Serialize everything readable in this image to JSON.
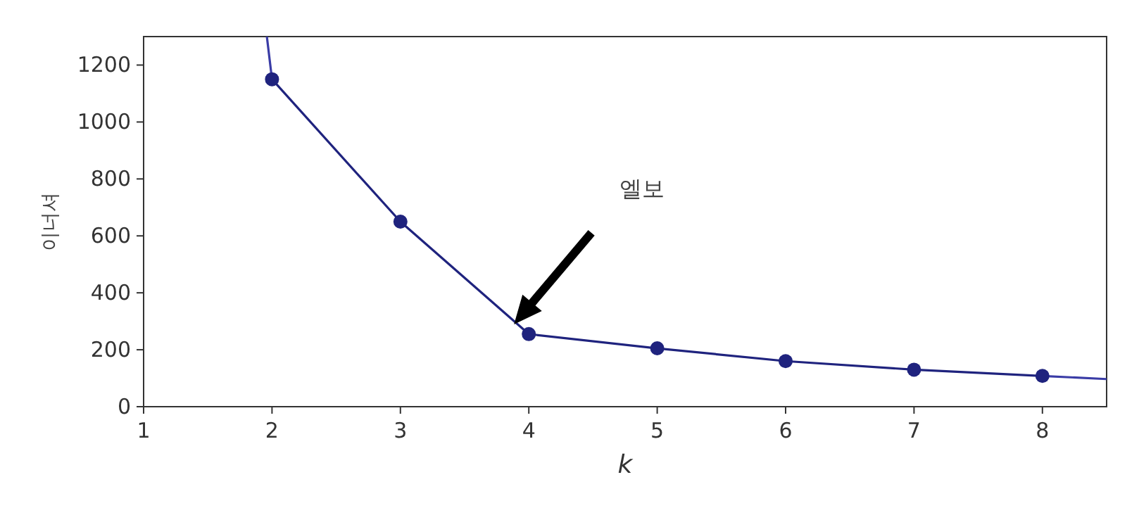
{
  "chart_data": {
    "type": "line",
    "xlabel": "*k*",
    "ylabel": "이너셔",
    "x": [
      2,
      3,
      4,
      5,
      6,
      7,
      8
    ],
    "series": [
      {
        "color": "#1f237e",
        "marker": "circle",
        "values": [
          1150,
          650,
          255,
          205,
          160,
          130,
          108
        ]
      },
      {
        "color": "#3a3ca6",
        "marker": "none",
        "x": [
          1.96,
          2,
          null,
          8,
          8.5
        ],
        "values": [
          1300,
          1150,
          null,
          108,
          97
        ]
      }
    ],
    "xlim": [
      1,
      8.5
    ],
    "ylim": [
      0,
      1300
    ],
    "xticks": [
      1,
      2,
      3,
      4,
      5,
      6,
      7,
      8
    ],
    "yticks": [
      0,
      200,
      400,
      600,
      800,
      1000,
      1200
    ],
    "grid": false,
    "line_style": "solid",
    "annotations": [
      "엘보"
    ]
  }
}
